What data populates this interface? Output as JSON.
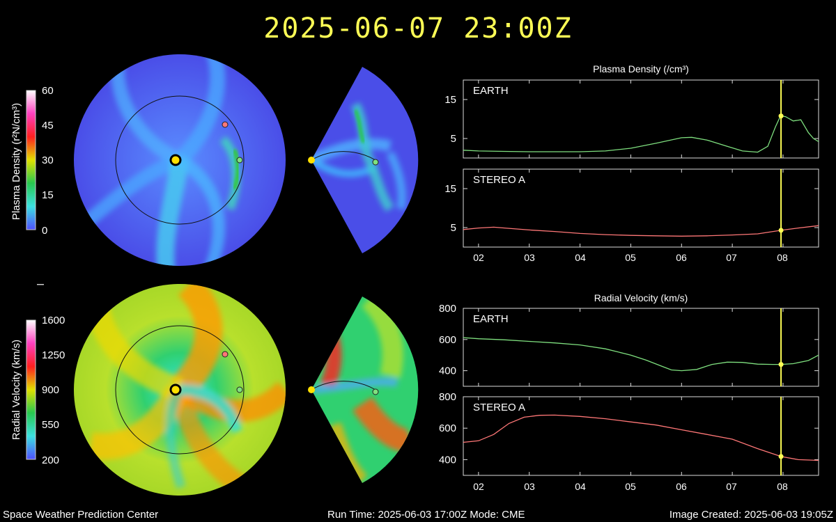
{
  "header": {
    "timestamp": "2025-06-07  23:00Z"
  },
  "footer": {
    "left": "Space Weather Prediction Center",
    "center": "Run Time: 2025-06-03 17:00Z  Mode: CME",
    "right": "Image Created: 2025-06-03 19:05Z"
  },
  "colorbars": {
    "density": {
      "label": "Plasma Density (r²N/cm³)",
      "ticks": [
        "60",
        "45",
        "30",
        "15",
        "0"
      ],
      "colors": [
        "#5050ff",
        "#3ce0e0",
        "#28c850",
        "#e0e000",
        "#ff2020",
        "#ff40c0",
        "#ffffff"
      ]
    },
    "velocity": {
      "label": "Radial Velocity (km/s)",
      "ticks": [
        "1600",
        "1250",
        "900",
        "550",
        "200"
      ],
      "colors": [
        "#5050ff",
        "#3ce0e0",
        "#28c850",
        "#e0e000",
        "#ff2020",
        "#ff40c0",
        "#ffffff"
      ]
    }
  },
  "colors": {
    "earth": "#7fe07f",
    "stereo": "#ff7777",
    "marker": "#ffff55",
    "sun": "#ffe000"
  },
  "chart_data": [
    {
      "type": "line",
      "title": "Plasma Density (/cm³)",
      "xlabel": "",
      "ylabel": "",
      "x_ticks": [
        "02",
        "03",
        "04",
        "05",
        "06",
        "07",
        "08"
      ],
      "xlim": [
        1.7,
        8.7
      ],
      "current_time": 7.96,
      "panels": [
        {
          "name": "EARTH",
          "ylim": [
            0,
            20
          ],
          "yticks": [
            "15",
            "5"
          ],
          "ytick_values": [
            15,
            5
          ],
          "series": {
            "name": "EARTH",
            "color": "#7fe07f",
            "x": [
              1.7,
              2.0,
              2.5,
              3.0,
              3.5,
              4.0,
              4.5,
              5.0,
              5.5,
              6.0,
              6.2,
              6.5,
              6.9,
              7.2,
              7.5,
              7.7,
              7.85,
              7.95,
              8.05,
              8.2,
              8.35,
              8.5,
              8.6,
              8.7
            ],
            "y": [
              2.0,
              1.8,
              1.7,
              1.6,
              1.6,
              1.6,
              1.8,
              2.5,
              3.8,
              5.2,
              5.3,
              4.6,
              3.0,
              1.8,
              1.5,
              3.0,
              8.0,
              10.8,
              10.6,
              9.5,
              9.8,
              6.5,
              5.0,
              4.2
            ]
          }
        },
        {
          "name": "STEREO A",
          "ylim": [
            0,
            20
          ],
          "yticks": [
            "15",
            "5"
          ],
          "ytick_values": [
            15,
            5
          ],
          "series": {
            "name": "STEREO A",
            "color": "#ff7777",
            "x": [
              1.7,
              2.0,
              2.3,
              2.6,
              3.0,
              3.5,
              4.0,
              4.5,
              5.0,
              5.5,
              6.0,
              6.5,
              7.0,
              7.5,
              7.96,
              8.3,
              8.7
            ],
            "y": [
              4.5,
              4.9,
              5.1,
              4.8,
              4.4,
              4.0,
              3.5,
              3.2,
              3.0,
              2.9,
              2.8,
              2.9,
              3.1,
              3.4,
              4.3,
              4.9,
              5.5
            ]
          }
        }
      ]
    },
    {
      "type": "line",
      "title": "Radial Velocity (km/s)",
      "xlabel": "",
      "ylabel": "",
      "x_ticks": [
        "02",
        "03",
        "04",
        "05",
        "06",
        "07",
        "08"
      ],
      "xlim": [
        1.7,
        8.7
      ],
      "current_time": 7.96,
      "panels": [
        {
          "name": "EARTH",
          "ylim": [
            300,
            800
          ],
          "yticks": [
            "800",
            "600",
            "400"
          ],
          "ytick_values": [
            800,
            600,
            400
          ],
          "series": {
            "name": "EARTH",
            "color": "#7fe07f",
            "x": [
              1.7,
              2.0,
              2.5,
              3.0,
              3.5,
              4.0,
              4.5,
              5.0,
              5.3,
              5.6,
              5.8,
              6.0,
              6.3,
              6.6,
              6.9,
              7.2,
              7.5,
              7.8,
              7.96,
              8.2,
              8.5,
              8.7
            ],
            "y": [
              612,
              605,
              598,
              588,
              578,
              565,
              540,
              500,
              468,
              430,
              405,
              400,
              408,
              440,
              455,
              453,
              442,
              440,
              440,
              445,
              465,
              500
            ]
          }
        },
        {
          "name": "STEREO A",
          "ylim": [
            300,
            800
          ],
          "yticks": [
            "800",
            "600",
            "400"
          ],
          "ytick_values": [
            800,
            600,
            400
          ],
          "series": {
            "name": "STEREO A",
            "color": "#ff7777",
            "x": [
              1.7,
              2.0,
              2.3,
              2.6,
              2.9,
              3.2,
              3.5,
              4.0,
              4.5,
              5.0,
              5.5,
              6.0,
              6.5,
              7.0,
              7.5,
              7.96,
              8.3,
              8.7
            ],
            "y": [
              510,
              520,
              560,
              630,
              670,
              682,
              683,
              675,
              660,
              640,
              620,
              590,
              560,
              530,
              470,
              420,
              400,
              395
            ]
          }
        }
      ]
    }
  ]
}
